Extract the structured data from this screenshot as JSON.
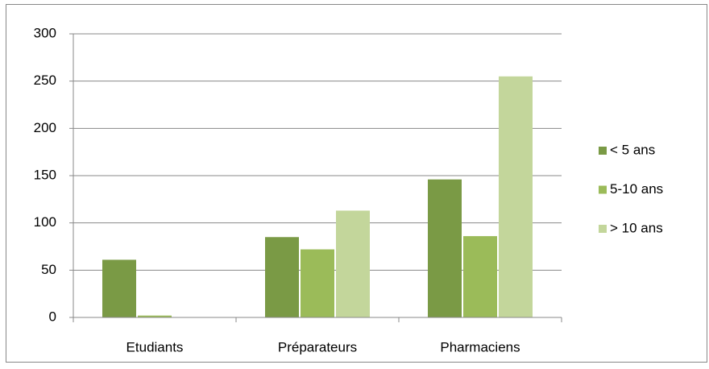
{
  "chart_data": {
    "type": "bar",
    "categories": [
      "Etudiants",
      "Préparateurs",
      "Pharmaciens"
    ],
    "series": [
      {
        "name": "< 5 ans",
        "color": "#7a9a45",
        "values": [
          61,
          85,
          146
        ]
      },
      {
        "name": "5-10 ans",
        "color": "#9bbb59",
        "values": [
          2,
          72,
          86
        ]
      },
      {
        "name": "> 10 ans",
        "color": "#c3d69b",
        "values": [
          0,
          113,
          255
        ]
      }
    ],
    "ylim": [
      0,
      300
    ],
    "yticks": [
      0,
      50,
      100,
      150,
      200,
      250,
      300
    ],
    "grid": true,
    "legend": "right"
  }
}
